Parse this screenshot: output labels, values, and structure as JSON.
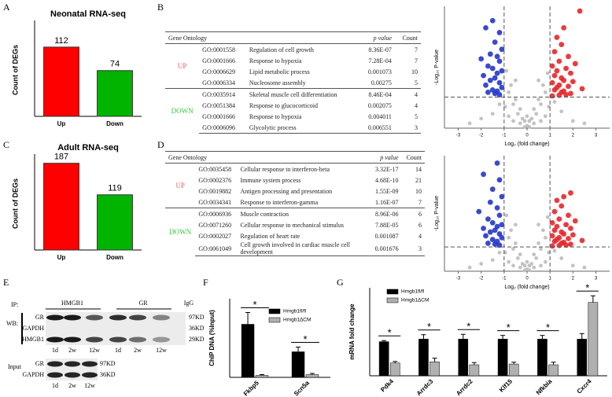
{
  "panel_labels": [
    "A",
    "B",
    "C",
    "D",
    "E",
    "F",
    "G"
  ],
  "chart_data": [
    {
      "type": "bar",
      "title": "Neonatal RNA-seq",
      "ylabel": "Count of DEGs",
      "categories": [
        "Up",
        "Down"
      ],
      "values": [
        112,
        74
      ],
      "colors": [
        "#ff0000",
        "#00b400"
      ],
      "ylim": [
        0,
        150
      ]
    },
    {
      "type": "bar",
      "title": "Adult RNA-seq",
      "ylabel": "Count of DEGs",
      "categories": [
        "Up",
        "Down"
      ],
      "values": [
        187,
        119
      ],
      "colors": [
        "#ff0000",
        "#00b400"
      ],
      "ylim": [
        0,
        200
      ]
    },
    {
      "type": "scatter",
      "xlabel": "Log₂ (fold change)",
      "ylabel": "-Log₁₀ P-value",
      "xlim": [
        -3.6,
        3.6
      ],
      "ylim": [
        0,
        5.1
      ],
      "xticks": [
        -3,
        -2,
        -1,
        0,
        1,
        2,
        3
      ],
      "vlines": [
        -1,
        1
      ],
      "hline": 1.3,
      "series": [
        {
          "color": "#bdbdbd",
          "x": [
            -0.9,
            -0.7,
            -0.5,
            -0.3,
            -0.1,
            0.1,
            0.3,
            0.5,
            0.7,
            0.9,
            -0.8,
            -0.6,
            -0.4,
            -0.2,
            0,
            0.2,
            0.4,
            0.6,
            0.8,
            -0.95,
            0.95,
            -0.5,
            0.5,
            -0.3,
            0.3,
            -1.5,
            -2.0,
            1.5,
            2.0,
            -1.2,
            1.2,
            -0.6,
            0.6,
            -0.8,
            0.8,
            -2.5,
            2.5,
            0,
            -0.1,
            0.1
          ],
          "values": [
            2.4,
            1.8,
            1.2,
            0.8,
            0.3,
            0.3,
            0.8,
            1.2,
            1.8,
            2.3,
            1.5,
            1.0,
            0.6,
            0.4,
            0.1,
            0.4,
            0.6,
            1.0,
            1.5,
            0.9,
            0.9,
            2.0,
            2.0,
            0.2,
            0.2,
            0.6,
            0.4,
            0.7,
            0.3,
            1.0,
            1.1,
            0.3,
            0.3,
            0.5,
            0.5,
            0.2,
            0.2,
            0.5,
            0.05,
            0.05
          ]
        },
        {
          "color": "#2436c8",
          "x": [
            -1.5,
            -1.8,
            -1.2,
            -1.4,
            -1.1,
            -1.6,
            -1.3,
            -2.0,
            -1.2,
            -1.7,
            -1.5,
            -1.1,
            -1.3,
            -1.9,
            -1.4,
            -1.6,
            -1.2,
            -1.8,
            -1.1,
            -1.5,
            -1.3,
            -1.7,
            -1.4,
            -1.2
          ],
          "values": [
            4.5,
            4.2,
            4.0,
            3.6,
            3.3,
            3.1,
            3.0,
            2.9,
            2.8,
            2.6,
            2.5,
            2.4,
            2.3,
            2.2,
            2.1,
            2.0,
            1.9,
            1.8,
            1.7,
            1.6,
            1.55,
            1.5,
            1.45,
            1.4
          ]
        },
        {
          "color": "#e8262a",
          "x": [
            2.3,
            1.6,
            1.3,
            1.5,
            1.2,
            1.8,
            1.4,
            2.1,
            1.1,
            1.7,
            1.3,
            1.9,
            1.2,
            1.5,
            1.6,
            2.0,
            1.1,
            1.4,
            1.8,
            1.3,
            2.4,
            1.2,
            1.6,
            1.5,
            1.9,
            1.7,
            1.1,
            1.4
          ],
          "values": [
            4.9,
            4.2,
            3.8,
            3.5,
            3.2,
            3.0,
            2.8,
            2.7,
            2.6,
            2.5,
            2.4,
            2.3,
            2.2,
            2.1,
            2.0,
            1.95,
            1.9,
            1.8,
            1.75,
            1.7,
            1.65,
            1.6,
            1.55,
            1.5,
            1.45,
            1.4,
            1.35,
            1.38
          ]
        }
      ]
    },
    {
      "type": "scatter",
      "xlabel": "Log₂ (fold change)",
      "ylabel": "-Log₁₀ P-value",
      "xlim": [
        -3.6,
        3.6
      ],
      "ylim": [
        0,
        6.2
      ],
      "xticks": [
        -3,
        -2,
        -1,
        0,
        1,
        2,
        3
      ],
      "vlines": [
        -1,
        1
      ],
      "hline": 1.3,
      "series": [
        {
          "color": "#bdbdbd",
          "x": [
            -0.9,
            -0.7,
            -0.5,
            -0.3,
            -0.1,
            0.1,
            0.3,
            0.5,
            0.7,
            0.9,
            -0.8,
            -0.6,
            -0.4,
            -0.2,
            0,
            0.2,
            0.4,
            0.6,
            0.8,
            -0.95,
            0.95,
            -0.5,
            0.5,
            -0.3,
            0.3,
            -1.5,
            -2.0,
            1.5,
            2.0,
            -1.2,
            1.2,
            -0.6,
            0.6,
            -0.8,
            0.8,
            -2.5,
            2.5,
            0,
            -0.1,
            0.1
          ],
          "values": [
            3.0,
            2.2,
            1.5,
            0.9,
            0.3,
            0.3,
            0.9,
            1.5,
            2.2,
            2.9,
            1.8,
            1.2,
            0.7,
            0.4,
            0.1,
            0.4,
            0.7,
            1.2,
            1.8,
            1.0,
            1.0,
            2.5,
            2.5,
            0.2,
            0.2,
            0.6,
            0.4,
            0.7,
            0.3,
            1.0,
            1.1,
            0.3,
            0.3,
            0.5,
            0.5,
            0.2,
            0.2,
            0.5,
            0.05,
            0.05
          ]
        },
        {
          "color": "#2436c8",
          "x": [
            -1.3,
            -1.9,
            -1.2,
            -1.5,
            -1.1,
            -1.6,
            -1.3,
            -2.1,
            -1.2,
            -1.7,
            -1.5,
            -1.1,
            -1.3,
            -1.9,
            -1.4,
            -1.6,
            -1.2,
            -1.8,
            -1.1,
            -1.5,
            -1.3,
            -1.7,
            -1.4,
            -1.2
          ],
          "values": [
            5.8,
            5.2,
            4.9,
            4.4,
            4.0,
            3.7,
            3.4,
            3.2,
            3.0,
            2.8,
            2.6,
            2.5,
            2.4,
            2.3,
            2.2,
            2.1,
            2.0,
            1.9,
            1.8,
            1.7,
            1.6,
            1.5,
            1.45,
            1.4
          ]
        },
        {
          "color": "#e8262a",
          "x": [
            1.9,
            1.6,
            1.3,
            1.5,
            1.2,
            1.8,
            1.4,
            2.1,
            1.1,
            1.7,
            1.3,
            1.9,
            1.2,
            1.5,
            1.6,
            2.0,
            1.1,
            1.4,
            1.8,
            1.3,
            2.4,
            1.2,
            1.6,
            1.5,
            1.9,
            1.7,
            1.1,
            1.4
          ],
          "values": [
            4.2,
            4.0,
            3.8,
            3.5,
            3.2,
            3.0,
            2.8,
            2.7,
            2.6,
            2.5,
            2.4,
            2.3,
            2.2,
            2.1,
            2.0,
            1.95,
            1.9,
            1.8,
            1.75,
            1.7,
            1.65,
            1.6,
            1.55,
            1.5,
            1.45,
            1.4,
            1.35,
            1.38
          ]
        }
      ]
    },
    {
      "type": "grouped",
      "ylabel": "ChIP DNA (%Input)",
      "categories": [
        "Fkbp5",
        "Scn5a"
      ],
      "ylim": [
        0,
        2
      ],
      "series": [
        {
          "name": "Hmgb1fl/fl",
          "color": "#000000",
          "values": [
            1.35,
            0.65
          ],
          "errors": [
            0.3,
            0.12
          ]
        },
        {
          "name": "Hmgb1ΔCM",
          "color": "#b0b0b0",
          "values": [
            0.05,
            0.07
          ],
          "errors": [
            0.02,
            0.03
          ]
        }
      ],
      "significance": [
        "*",
        "*"
      ]
    },
    {
      "type": "grouped",
      "ylabel": "mRNA fold change",
      "categories": [
        "Pdk4",
        "Arrdc3",
        "Arrdc2",
        "Klf15",
        "Nfkbia",
        "Cxcr4"
      ],
      "ylim": [
        0,
        2.4
      ],
      "series": [
        {
          "name": "Hmgb1fl/fl",
          "color": "#000000",
          "values": [
            0.93,
            1.0,
            1.0,
            1.0,
            1.0,
            1.0
          ],
          "errors": [
            0.03,
            0.12,
            0.13,
            0.1,
            0.1,
            0.15
          ]
        },
        {
          "name": "Hmgb1ΔCM",
          "color": "#b0b0b0",
          "values": [
            0.35,
            0.38,
            0.3,
            0.32,
            0.3,
            2.0
          ],
          "errors": [
            0.04,
            0.1,
            0.06,
            0.05,
            0.07,
            0.18
          ]
        }
      ],
      "significance": [
        "*",
        "*",
        "*",
        "*",
        "*",
        "*"
      ]
    }
  ],
  "table_b": {
    "header": [
      "Gene Ontology",
      "p value",
      "Count"
    ],
    "groups": [
      {
        "name": "UP",
        "rows": [
          [
            "GO:0001558",
            "Regulation of cell growth",
            "8.36E-07",
            7
          ],
          [
            "GO:0001666",
            "Response to hypoxia",
            "7.28E-04",
            7
          ],
          [
            "GO:0006629",
            "Lipid metabolic process",
            "0.001073",
            10
          ],
          [
            "GO:0006334",
            "Nucleosome assembly",
            "0.00275",
            5
          ]
        ]
      },
      {
        "name": "DOWN",
        "rows": [
          [
            "GO:0035914",
            "Skeletal muscle cell differentiation",
            "8.46E-04",
            4
          ],
          [
            "GO:0051384",
            "Response to glucocorticoid",
            "0.002075",
            4
          ],
          [
            "GO:0001666",
            "Response to hypoxia",
            "0.004011",
            5
          ],
          [
            "GO:0006096",
            "Glycolytic process",
            "0.006551",
            3
          ]
        ]
      }
    ]
  },
  "table_d": {
    "header": [
      "Gene Ontology",
      "p value",
      "Count"
    ],
    "groups": [
      {
        "name": "UP",
        "rows": [
          [
            "GO:0035458",
            "Cellular response to interferon-beta",
            "3.32E-17",
            14
          ],
          [
            "GO:0002376",
            "Immune system process",
            "4.68E-10",
            21
          ],
          [
            "GO:0019882",
            "Antigen processing and presentation",
            "1.55E-09",
            10
          ],
          [
            "GO:0034341",
            "Response to interferon-gamma",
            "1.16E-07",
            7
          ]
        ]
      },
      {
        "name": "DOWN",
        "rows": [
          [
            "GO:0006936",
            "Muscle contraction",
            "8.96E-06",
            6
          ],
          [
            "GO:0071260",
            "Cellular response to mechanical stimulus",
            "7.88E-05",
            6
          ],
          [
            "GO:0002027",
            "Regulation of heart rate",
            "0.001087",
            4
          ],
          [
            "GO:0061049",
            "Cell growth involved in cardiac muscle cell development",
            "0.001676",
            3
          ]
        ]
      }
    ]
  },
  "blot": {
    "ip_label": "IP:",
    "ip_groups": [
      "HMGB1",
      "GR",
      "IgG"
    ],
    "wb_label": "WB:",
    "wb_rows": [
      "GR",
      "GAPDH",
      "HMGB1"
    ],
    "wb_sizes": [
      "97KD",
      "36KD",
      "29KD"
    ],
    "wb_lanes": [
      "1d",
      "2w",
      "12w",
      "1d",
      "2w",
      "12w"
    ],
    "input_label": "Input",
    "input_rows": [
      "GR",
      "GAPDH"
    ],
    "input_sizes": [
      "97KD",
      "36KD"
    ],
    "input_lanes": [
      "1d",
      "2w",
      "12w"
    ]
  }
}
